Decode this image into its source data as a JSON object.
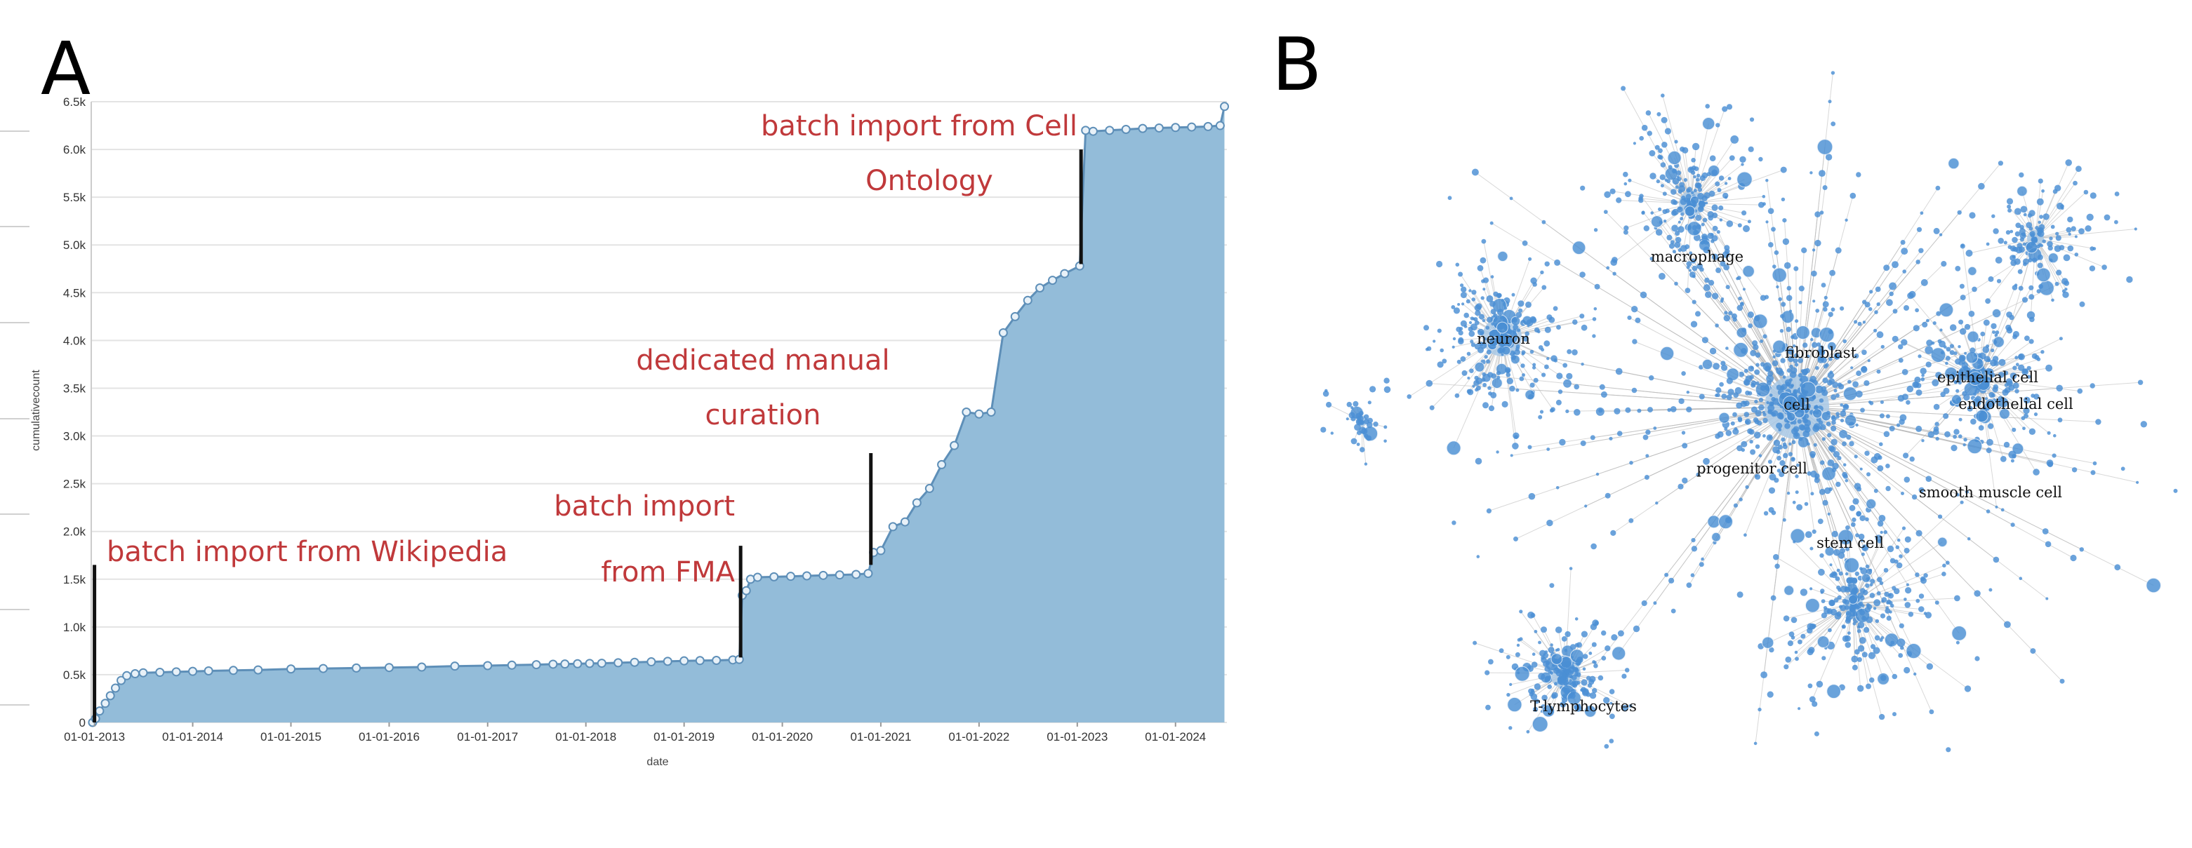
{
  "panels": {
    "a_letter": "A",
    "b_letter": "B"
  },
  "colors": {
    "area_fill": "#93bcd9",
    "area_stroke": "#5e8fb8",
    "grid": "#e3e3e3",
    "annotation": "#c0393b",
    "node": "#4a8fd4",
    "edge": "#b9b9b9"
  },
  "chart_data": [
    {
      "type": "area",
      "xlabel": "date",
      "ylabel": "cumulativecount",
      "ylim": [
        0,
        6500
      ],
      "xlim": [
        "2012-12-20",
        "2024-07-10"
      ],
      "grid": true,
      "y_ticks": [
        0,
        500,
        1000,
        1500,
        2000,
        2500,
        3000,
        3500,
        4000,
        4500,
        5000,
        5500,
        6000,
        6500
      ],
      "y_tick_labels": [
        "0",
        "0.5k",
        "1.0k",
        "1.5k",
        "2.0k",
        "2.5k",
        "3.0k",
        "3.5k",
        "4.0k",
        "4.5k",
        "5.0k",
        "5.5k",
        "6.0k",
        "6.5k"
      ],
      "x_tick_labels": [
        "01-01-2013",
        "01-01-2014",
        "01-01-2015",
        "01-01-2016",
        "01-01-2017",
        "01-01-2018",
        "01-01-2019",
        "01-01-2020",
        "01-01-2021",
        "01-01-2022",
        "01-01-2023",
        "01-01-2024"
      ],
      "series": [
        {
          "points": [
            [
              "2012-12-25",
              0
            ],
            [
              "2013-01-05",
              40
            ],
            [
              "2013-01-20",
              120
            ],
            [
              "2013-02-10",
              200
            ],
            [
              "2013-03-01",
              280
            ],
            [
              "2013-03-20",
              360
            ],
            [
              "2013-04-10",
              440
            ],
            [
              "2013-05-01",
              490
            ],
            [
              "2013-06-01",
              510
            ],
            [
              "2013-07-01",
              520
            ],
            [
              "2013-09-01",
              525
            ],
            [
              "2013-11-01",
              530
            ],
            [
              "2014-01-01",
              535
            ],
            [
              "2014-03-01",
              540
            ],
            [
              "2014-06-01",
              545
            ],
            [
              "2014-09-01",
              550
            ],
            [
              "2015-01-01",
              560
            ],
            [
              "2015-05-01",
              565
            ],
            [
              "2015-09-01",
              570
            ],
            [
              "2016-01-01",
              575
            ],
            [
              "2016-05-01",
              580
            ],
            [
              "2016-09-01",
              590
            ],
            [
              "2017-01-01",
              595
            ],
            [
              "2017-04-01",
              600
            ],
            [
              "2017-07-01",
              605
            ],
            [
              "2017-09-01",
              610
            ],
            [
              "2017-10-15",
              612
            ],
            [
              "2017-12-01",
              615
            ],
            [
              "2018-01-15",
              618
            ],
            [
              "2018-03-01",
              620
            ],
            [
              "2018-05-01",
              625
            ],
            [
              "2018-07-01",
              630
            ],
            [
              "2018-09-01",
              635
            ],
            [
              "2018-11-01",
              640
            ],
            [
              "2019-01-01",
              645
            ],
            [
              "2019-03-01",
              648
            ],
            [
              "2019-05-01",
              650
            ],
            [
              "2019-07-01",
              655
            ],
            [
              "2019-07-25",
              660
            ],
            [
              "2019-08-05",
              1330
            ],
            [
              "2019-08-20",
              1380
            ],
            [
              "2019-09-05",
              1500
            ],
            [
              "2019-10-01",
              1520
            ],
            [
              "2019-12-01",
              1525
            ],
            [
              "2020-02-01",
              1530
            ],
            [
              "2020-04-01",
              1535
            ],
            [
              "2020-06-01",
              1540
            ],
            [
              "2020-08-01",
              1545
            ],
            [
              "2020-10-01",
              1550
            ],
            [
              "2020-11-15",
              1560
            ],
            [
              "2020-12-05",
              1780
            ],
            [
              "2021-01-01",
              1800
            ],
            [
              "2021-02-15",
              2050
            ],
            [
              "2021-04-01",
              2100
            ],
            [
              "2021-05-15",
              2300
            ],
            [
              "2021-07-01",
              2450
            ],
            [
              "2021-08-15",
              2700
            ],
            [
              "2021-10-01",
              2900
            ],
            [
              "2021-11-15",
              3250
            ],
            [
              "2022-01-01",
              3230
            ],
            [
              "2022-02-15",
              3250
            ],
            [
              "2022-04-01",
              4080
            ],
            [
              "2022-05-15",
              4250
            ],
            [
              "2022-07-01",
              4420
            ],
            [
              "2022-08-15",
              4550
            ],
            [
              "2022-10-01",
              4630
            ],
            [
              "2022-11-15",
              4700
            ],
            [
              "2023-01-10",
              4780
            ],
            [
              "2023-02-01",
              6200
            ],
            [
              "2023-03-01",
              6190
            ],
            [
              "2023-05-01",
              6200
            ],
            [
              "2023-07-01",
              6210
            ],
            [
              "2023-09-01",
              6220
            ],
            [
              "2023-11-01",
              6225
            ],
            [
              "2024-01-01",
              6230
            ],
            [
              "2024-03-01",
              6235
            ],
            [
              "2024-05-01",
              6240
            ],
            [
              "2024-06-15",
              6250
            ],
            [
              "2024-07-01",
              6450
            ]
          ]
        }
      ],
      "annotations": [
        {
          "lines": [
            "batch import from Wikipedia"
          ],
          "date": "2013-01-01",
          "y_from": 0,
          "y_to": 1650
        },
        {
          "lines": [
            "batch import",
            "from FMA"
          ],
          "date": "2019-07-30",
          "y_from": 680,
          "y_to": 1850
        },
        {
          "lines": [
            "dedicated manual",
            "curation"
          ],
          "date": "2020-11-25",
          "y_from": 1650,
          "y_to": 2820
        },
        {
          "lines": [
            "batch import from Cell",
            "Ontology"
          ],
          "date": "2023-01-15",
          "y_from": 4800,
          "y_to": 6000
        }
      ]
    },
    {
      "type": "network",
      "node_labels": [
        "macrophage",
        "neuron",
        "fibroblast",
        "epithelial cell",
        "endothelial cell",
        "cell",
        "progenitor cell",
        "smooth muscle cell",
        "stem cell",
        "T-lymphocytes"
      ]
    }
  ]
}
